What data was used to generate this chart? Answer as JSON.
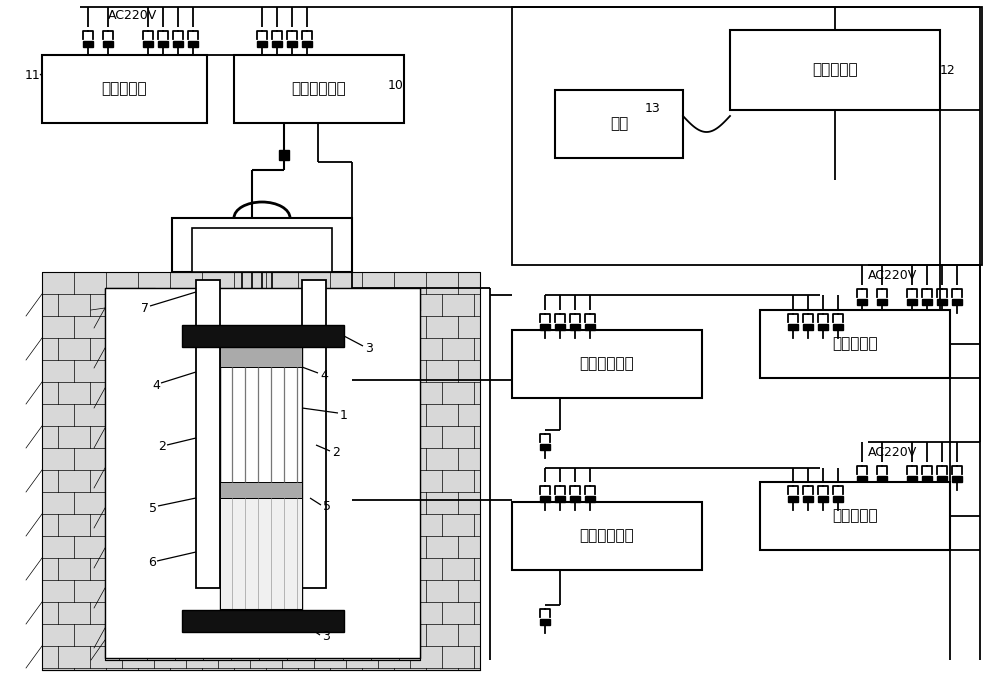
{
  "bg": "#ffffff",
  "labels": {
    "box11": "温度调节器",
    "box10": "直流稳定电源",
    "box12": "数据采集仪",
    "box13": "电脑",
    "box_mid_dc": "直流稳定电源",
    "box_mid_temp": "温度调节器",
    "box_bot_dc": "直流稳定电源",
    "box_bot_temp": "温度调节器",
    "ac220v": "AC220V"
  }
}
